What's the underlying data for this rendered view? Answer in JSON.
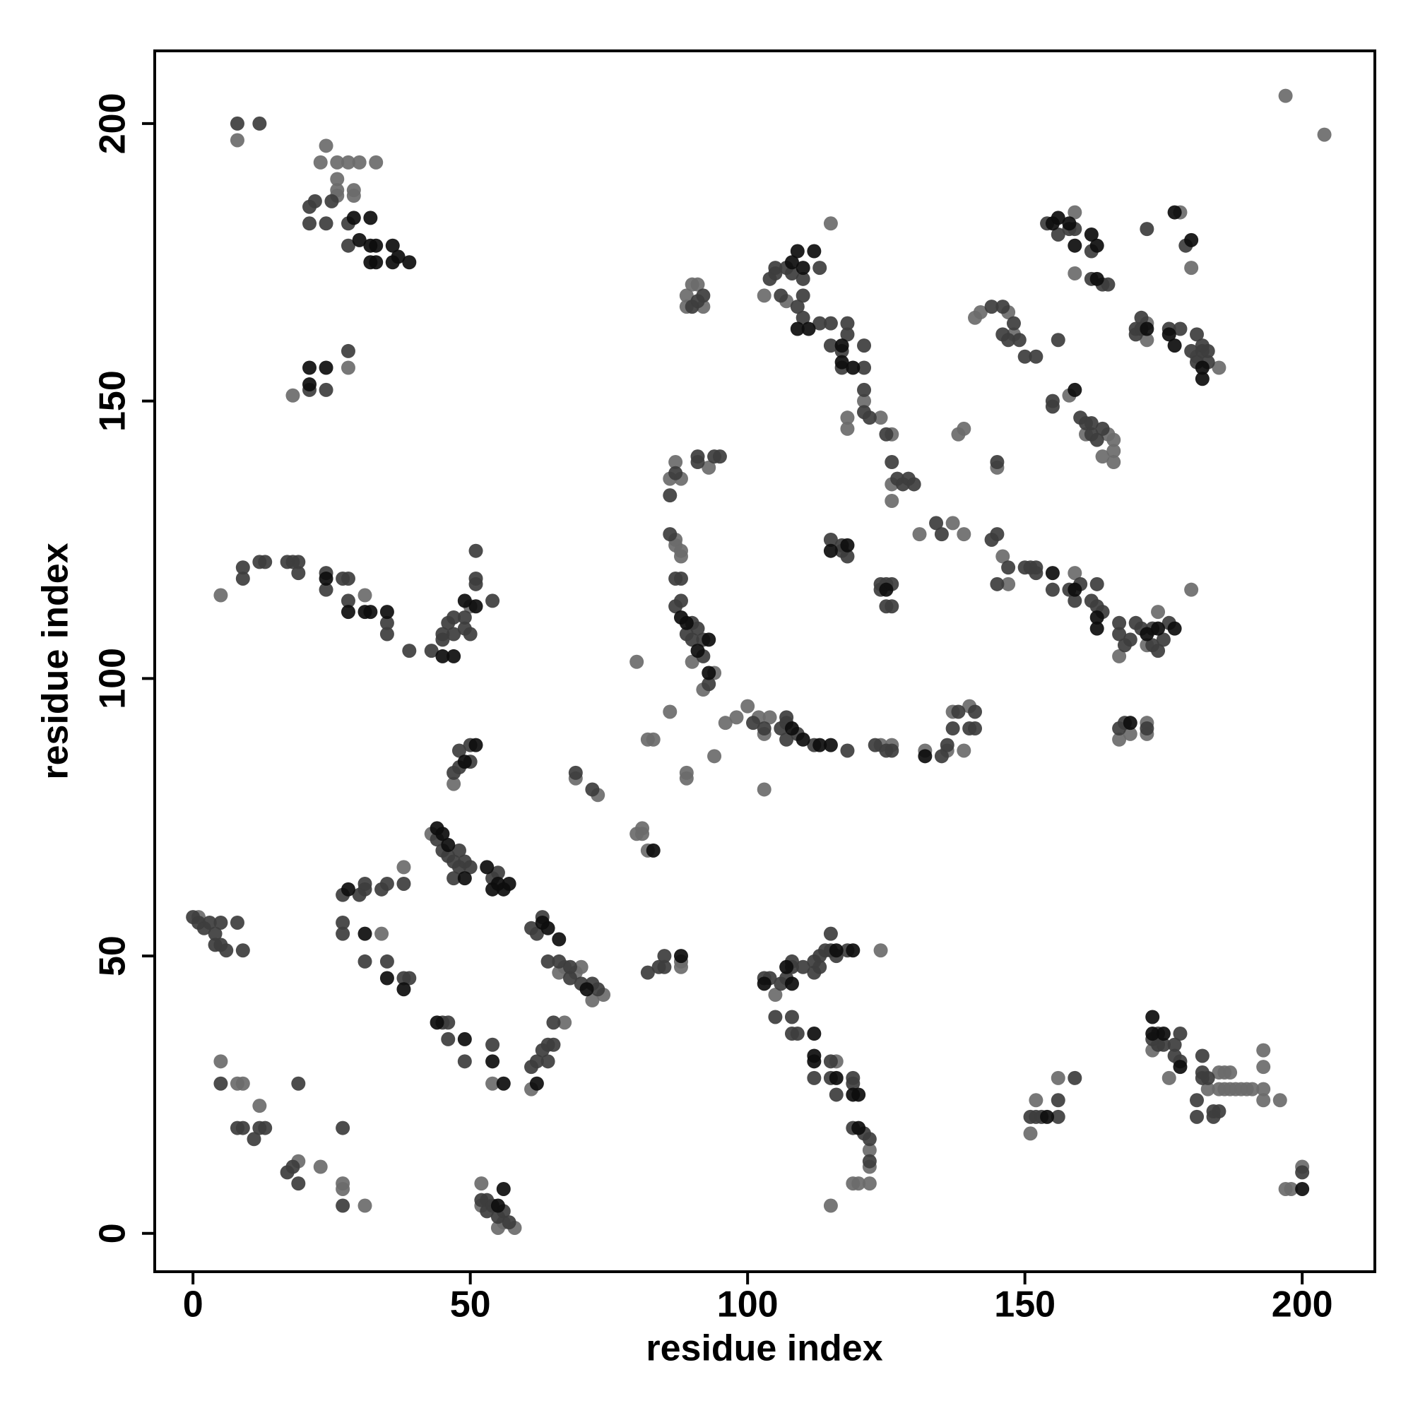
{
  "chart_data": {
    "type": "scatter",
    "xlabel": "residue index",
    "ylabel": "residue index",
    "xlim": [
      -6.9,
      213.1
    ],
    "ylim": [
      -6.9,
      213.1
    ],
    "xticks": [
      0,
      50,
      100,
      150,
      200
    ],
    "yticks": [
      0,
      50,
      100,
      150,
      200
    ],
    "series": [
      {
        "color": "#6b6b6b",
        "x": [
          8,
          24,
          23,
          26,
          28,
          30,
          33,
          26,
          26,
          26,
          29,
          29,
          18,
          28,
          5,
          31,
          50,
          8,
          9,
          5,
          12,
          19,
          23,
          27,
          27,
          31,
          34,
          38,
          43,
          47,
          54,
          61,
          67,
          66,
          67,
          69,
          70,
          72,
          74,
          52,
          52,
          55,
          56,
          58,
          69,
          73,
          80,
          81,
          81,
          82,
          80,
          82,
          83,
          86,
          89,
          89,
          94,
          88,
          88,
          86,
          87,
          88,
          87,
          87,
          88,
          88,
          90,
          92,
          94,
          93,
          89,
          90,
          91,
          92,
          89,
          96,
          98,
          100,
          102,
          103,
          104,
          124,
          126,
          132,
          136,
          137,
          139,
          140,
          103,
          103,
          107,
          115,
          121,
          118,
          118,
          124,
          126,
          126,
          126,
          131,
          137,
          139,
          138,
          139,
          145,
          146,
          147,
          159,
          167,
          172,
          174,
          180,
          167,
          172,
          172,
          169,
          142,
          147,
          141,
          148,
          158,
          161,
          165,
          166,
          166,
          166,
          164,
          159,
          159,
          172,
          172,
          185,
          181,
          178,
          180,
          197,
          204,
          105,
          115,
          119,
          120,
          122,
          122,
          122,
          124,
          151,
          152,
          156,
          173,
          176,
          183,
          185,
          185,
          186,
          186,
          187,
          187,
          188,
          189,
          190,
          191,
          193,
          193,
          193,
          193,
          196,
          197,
          198,
          200,
          1,
          116
        ],
        "y": [
          197,
          196,
          193,
          193,
          193,
          193,
          193,
          190,
          188,
          187,
          188,
          187,
          151,
          156,
          115,
          115,
          113,
          27,
          27,
          31,
          23,
          13,
          12,
          9,
          8,
          5,
          54,
          66,
          72,
          81,
          27,
          26,
          38,
          47,
          48,
          47,
          48,
          42,
          43,
          9,
          5,
          1,
          2,
          1,
          82,
          79,
          72,
          73,
          72,
          69,
          103,
          89,
          89,
          94,
          83,
          82,
          86,
          49,
          48,
          136,
          139,
          136,
          125,
          124,
          123,
          122,
          103,
          98,
          101,
          138,
          169,
          171,
          171,
          167,
          167,
          92,
          93,
          95,
          93,
          90,
          93,
          88,
          88,
          87,
          87,
          94,
          87,
          95,
          80,
          169,
          168,
          182,
          150,
          147,
          145,
          147,
          144,
          135,
          132,
          126,
          128,
          126,
          144,
          145,
          138,
          122,
          117,
          119,
          104,
          106,
          112,
          116,
          89,
          90,
          92,
          90,
          166,
          166,
          165,
          162,
          151,
          144,
          144,
          143,
          141,
          139,
          140,
          184,
          173,
          164,
          161,
          156,
          158,
          184,
          174,
          205,
          198,
          43,
          5,
          9,
          9,
          9,
          15,
          12,
          51,
          18,
          24,
          28,
          33,
          28,
          26,
          26,
          29,
          26,
          29,
          26,
          29,
          26,
          26,
          26,
          26,
          33,
          30,
          26,
          24,
          24,
          8,
          8,
          12,
          57,
          31
        ]
      },
      {
        "color": "#3d3d3d",
        "x": [
          8,
          12,
          21,
          22,
          25,
          21,
          24,
          28,
          28,
          28,
          21,
          24,
          9,
          24,
          24,
          27,
          28,
          28,
          35,
          39,
          43,
          45,
          46,
          47,
          49,
          50,
          51,
          51,
          54,
          5,
          12,
          13,
          18,
          19,
          19,
          27,
          27,
          1,
          2,
          3,
          4,
          4,
          5,
          6,
          8,
          9,
          27,
          30,
          31,
          31,
          34,
          35,
          38,
          27,
          27,
          31,
          35,
          38,
          39,
          44,
          45,
          46,
          47,
          48,
          47,
          54,
          55,
          47,
          48,
          48,
          50,
          50,
          45,
          46,
          46,
          49,
          54,
          61,
          62,
          63,
          64,
          65,
          64,
          65,
          61,
          62,
          63,
          64,
          66,
          68,
          68,
          70,
          72,
          73,
          52,
          53,
          53,
          54,
          55,
          56,
          57,
          69,
          72,
          82,
          84,
          85,
          85,
          86,
          87,
          86,
          87,
          88,
          87,
          88,
          89,
          90,
          90,
          92,
          91,
          92,
          93,
          91,
          91,
          94,
          95,
          90,
          91,
          92,
          101,
          103,
          106,
          107,
          107,
          107,
          109,
          112,
          118,
          123,
          125,
          126,
          135,
          136,
          137,
          138,
          140,
          141,
          141,
          104,
          105,
          105,
          107,
          108,
          110,
          110,
          113,
          106,
          109,
          110,
          113,
          115,
          115,
          117,
          118,
          118,
          117,
          121,
          121,
          121,
          121,
          122,
          125,
          126,
          127,
          128,
          129,
          130,
          115,
          117,
          117,
          118,
          124,
          124,
          125,
          125,
          126,
          126,
          134,
          135,
          145,
          145,
          144,
          145,
          147,
          150,
          151,
          152,
          152,
          155,
          158,
          159,
          160,
          162,
          163,
          163,
          164,
          167,
          167,
          168,
          169,
          170,
          171,
          173,
          173,
          174,
          175,
          176,
          167,
          168,
          172,
          144,
          146,
          148,
          146,
          147,
          149,
          150,
          152,
          156,
          155,
          155,
          160,
          161,
          162,
          162,
          163,
          164,
          154,
          156,
          158,
          159,
          162,
          162,
          164,
          165,
          170,
          170,
          171,
          171,
          176,
          178,
          181,
          180,
          182,
          182,
          181,
          183,
          183,
          172,
          179,
          103,
          104,
          106,
          107,
          108,
          108,
          110,
          112,
          112,
          113,
          113,
          114,
          115,
          115,
          116,
          118,
          105,
          108,
          108,
          109,
          112,
          115,
          115,
          116,
          119,
          119,
          119,
          121,
          122,
          122,
          151,
          152,
          153,
          156,
          156,
          159,
          174,
          174,
          173,
          175,
          177,
          177,
          178,
          178,
          181,
          181,
          182,
          182,
          182,
          183,
          184,
          184,
          185,
          200,
          49,
          49,
          50,
          48,
          0,
          5,
          9,
          19,
          19,
          18,
          17,
          12,
          13,
          11,
          9,
          8,
          17,
          35,
          45,
          47,
          51
        ],
        "y": [
          200,
          200,
          185,
          186,
          186,
          182,
          182,
          182,
          178,
          159,
          152,
          152,
          118,
          116,
          119,
          118,
          118,
          114,
          108,
          105,
          105,
          107,
          110,
          111,
          109,
          108,
          117,
          118,
          114,
          27,
          19,
          19,
          12,
          9,
          27,
          19,
          5,
          56,
          55,
          56,
          54,
          52,
          52,
          51,
          56,
          51,
          61,
          61,
          63,
          62,
          62,
          63,
          63,
          56,
          54,
          49,
          49,
          46,
          46,
          71,
          69,
          68,
          67,
          66,
          64,
          64,
          65,
          83,
          84,
          87,
          85,
          88,
          38,
          38,
          35,
          31,
          34,
          30,
          31,
          33,
          34,
          34,
          31,
          38,
          55,
          54,
          57,
          49,
          49,
          48,
          46,
          45,
          45,
          44,
          6,
          4,
          6,
          5,
          3,
          4,
          2,
          83,
          80,
          47,
          48,
          48,
          50,
          133,
          137,
          126,
          118,
          118,
          113,
          114,
          108,
          110,
          107,
          107,
          109,
          104,
          99,
          139,
          140,
          140,
          140,
          167,
          168,
          169,
          92,
          91,
          91,
          89,
          92,
          93,
          90,
          88,
          87,
          88,
          87,
          87,
          86,
          88,
          91,
          94,
          91,
          94,
          91,
          172,
          173,
          174,
          174,
          173,
          172,
          169,
          174,
          169,
          167,
          165,
          164,
          164,
          160,
          159,
          162,
          164,
          156,
          160,
          156,
          152,
          148,
          147,
          144,
          139,
          136,
          135,
          136,
          135,
          125,
          124,
          123,
          122,
          117,
          116,
          117,
          113,
          113,
          117,
          128,
          126,
          139,
          126,
          125,
          117,
          120,
          120,
          120,
          120,
          119,
          116,
          116,
          114,
          117,
          114,
          117,
          113,
          112,
          110,
          108,
          106,
          107,
          110,
          109,
          109,
          106,
          105,
          107,
          110,
          91,
          92,
          91,
          167,
          167,
          164,
          162,
          161,
          161,
          158,
          158,
          161,
          150,
          149,
          147,
          146,
          146,
          144,
          143,
          145,
          182,
          180,
          181,
          181,
          177,
          172,
          171,
          171,
          163,
          162,
          165,
          163,
          163,
          163,
          162,
          159,
          160,
          159,
          157,
          159,
          157,
          181,
          178,
          46,
          46,
          45,
          46,
          48,
          49,
          48,
          47,
          49,
          48,
          50,
          51,
          51,
          54,
          50,
          51,
          39,
          39,
          36,
          36,
          28,
          31,
          28,
          25,
          28,
          27,
          19,
          18,
          17,
          13,
          21,
          21,
          21,
          21,
          24,
          28,
          36,
          34,
          35,
          34,
          32,
          34,
          36,
          31,
          21,
          24,
          28,
          29,
          32,
          28,
          21,
          22,
          22,
          11,
          111,
          67,
          66,
          69,
          57,
          56,
          120,
          121,
          119,
          121,
          121,
          121,
          121,
          17,
          19,
          19,
          11,
          110,
          108,
          108,
          123
        ]
      },
      {
        "color": "#0d0d0d",
        "x": [
          29,
          32,
          30,
          32,
          33,
          36,
          32,
          33,
          36,
          37,
          39,
          21,
          21,
          24,
          24,
          28,
          31,
          32,
          35,
          45,
          47,
          49,
          51,
          28,
          31,
          35,
          38,
          44,
          45,
          46,
          49,
          53,
          54,
          55,
          56,
          57,
          49,
          51,
          44,
          49,
          54,
          56,
          62,
          63,
          64,
          66,
          71,
          83,
          88,
          88,
          89,
          91,
          93,
          93,
          108,
          109,
          110,
          112,
          109,
          111,
          117,
          117,
          119,
          115,
          118,
          125,
          113,
          115,
          132,
          155,
          159,
          163,
          163,
          172,
          174,
          177,
          169,
          155,
          156,
          158,
          159,
          162,
          163,
          163,
          172,
          176,
          177,
          182,
          182,
          180,
          177,
          159,
          103,
          108,
          112,
          112,
          112,
          116,
          119,
          120,
          120,
          154,
          173,
          173,
          175,
          178,
          200,
          116,
          119,
          107,
          55,
          56,
          108,
          110
        ],
        "y": [
          183,
          183,
          179,
          178,
          178,
          178,
          175,
          175,
          175,
          176,
          175,
          156,
          153,
          156,
          118,
          112,
          112,
          112,
          112,
          104,
          104,
          114,
          113,
          62,
          54,
          46,
          44,
          73,
          72,
          70,
          64,
          66,
          62,
          63,
          62,
          63,
          85,
          88,
          38,
          35,
          31,
          27,
          27,
          56,
          55,
          53,
          44,
          69,
          50,
          111,
          110,
          105,
          107,
          101,
          175,
          177,
          174,
          177,
          163,
          163,
          160,
          157,
          156,
          123,
          124,
          116,
          88,
          88,
          86,
          119,
          116,
          111,
          109,
          108,
          109,
          109,
          92,
          182,
          183,
          182,
          178,
          180,
          178,
          172,
          163,
          162,
          160,
          156,
          154,
          179,
          184,
          152,
          45,
          45,
          36,
          32,
          31,
          28,
          25,
          25,
          19,
          21,
          39,
          36,
          36,
          30,
          8,
          51,
          51,
          48,
          5,
          8,
          91,
          89
        ]
      }
    ]
  }
}
